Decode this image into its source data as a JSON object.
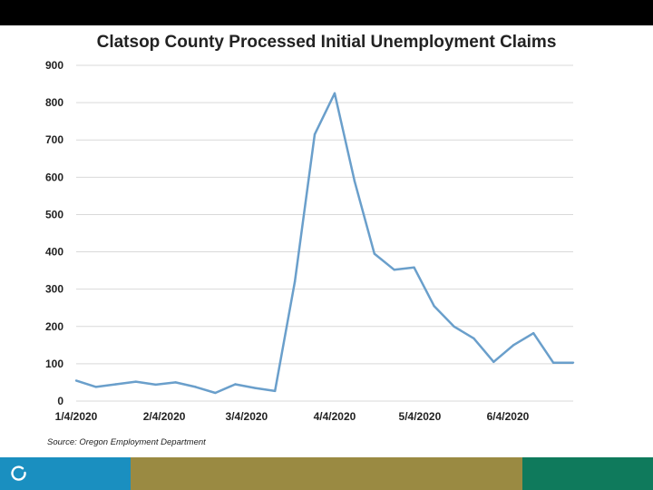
{
  "colors": {
    "top_bar": "#000000",
    "line": "#6a9fcb",
    "grid": "#d9d9d9",
    "footer_blue": "#1a8fc0",
    "footer_olive": "#9a8a42",
    "footer_green": "#0f7a5c"
  },
  "footer": {
    "logo_icon": "circle-logo-icon"
  },
  "source_text": "Source: Oregon Employment Department",
  "chart_data": {
    "type": "line",
    "title": "Clatsop County Processed Initial Unemployment Claims",
    "xlabel": "",
    "ylabel": "",
    "ylim": [
      0,
      900
    ],
    "yticks": [
      0,
      100,
      200,
      300,
      400,
      500,
      600,
      700,
      800,
      900
    ],
    "grid": true,
    "legend": "none",
    "x_tick_labels": [
      {
        "date": "2020-01-04",
        "label": "1/4/2020"
      },
      {
        "date": "2020-02-04",
        "label": "2/4/2020"
      },
      {
        "date": "2020-03-04",
        "label": "3/4/2020"
      },
      {
        "date": "2020-04-04",
        "label": "4/4/2020"
      },
      {
        "date": "2020-05-04",
        "label": "5/4/2020"
      },
      {
        "date": "2020-06-04",
        "label": "6/4/2020"
      }
    ],
    "x_range": [
      "2020-01-04",
      "2020-06-27"
    ],
    "series": [
      {
        "x": [
          "2020-01-04",
          "2020-01-11",
          "2020-01-18",
          "2020-01-25",
          "2020-02-01",
          "2020-02-08",
          "2020-02-15",
          "2020-02-22",
          "2020-02-29",
          "2020-03-07",
          "2020-03-14",
          "2020-03-21",
          "2020-03-28",
          "2020-04-04",
          "2020-04-11",
          "2020-04-18",
          "2020-04-25",
          "2020-05-02",
          "2020-05-09",
          "2020-05-16",
          "2020-05-23",
          "2020-05-30",
          "2020-06-06",
          "2020-06-13",
          "2020-06-20",
          "2020-06-27"
        ],
        "values": [
          55,
          38,
          45,
          52,
          44,
          50,
          38,
          22,
          45,
          35,
          27,
          320,
          715,
          825,
          590,
          395,
          352,
          358,
          255,
          200,
          168,
          105,
          150,
          182,
          103,
          103
        ]
      }
    ]
  }
}
